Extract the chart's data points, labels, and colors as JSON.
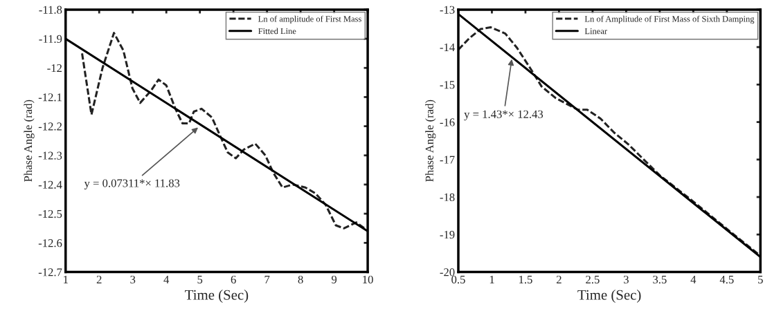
{
  "chart_data": [
    {
      "type": "line",
      "xlabel": "Time (Sec)",
      "ylabel": "Phase Angle (rad)",
      "xlim": [
        1,
        10
      ],
      "ylim": [
        -12.7,
        -11.8
      ],
      "xticks": [
        1,
        2,
        3,
        4,
        5,
        6,
        7,
        8,
        9,
        10
      ],
      "yticks": [
        -12.7,
        -12.6,
        -12.5,
        -12.4,
        -12.3,
        -12.2,
        -12.1,
        -12,
        -11.9,
        -11.8
      ],
      "legend": "top right",
      "grid": false,
      "series": [
        {
          "name": "Ln of amplitude of First Mass",
          "color": "#222222",
          "line_style": "dashed",
          "x": [
            1.49,
            1.77,
            2.1,
            2.44,
            2.72,
            2.99,
            3.22,
            3.53,
            3.77,
            4.0,
            4.27,
            4.48,
            4.68,
            4.82,
            5.05,
            5.36,
            5.63,
            5.83,
            6.07,
            6.31,
            6.65,
            6.95,
            7.19,
            7.46,
            7.77,
            8.14,
            8.44,
            8.75,
            9.05,
            9.29,
            9.66,
            9.9
          ],
          "values": [
            -11.95,
            -12.16,
            -12.0,
            -11.88,
            -11.94,
            -12.07,
            -12.12,
            -12.08,
            -12.04,
            -12.06,
            -12.14,
            -12.19,
            -12.19,
            -12.15,
            -12.14,
            -12.17,
            -12.24,
            -12.29,
            -12.31,
            -12.28,
            -12.26,
            -12.3,
            -12.36,
            -12.41,
            -12.4,
            -12.41,
            -12.43,
            -12.47,
            -12.54,
            -12.55,
            -12.53,
            -12.55
          ]
        },
        {
          "name": "Fitted Line",
          "color": "#000000",
          "line_style": "solid",
          "x": [
            1,
            10
          ],
          "values": [
            -11.9,
            -12.56
          ]
        }
      ],
      "annotations": [
        {
          "text": "y = 0.07311*× 11.83",
          "x": 4.99,
          "y": -12.2
        }
      ]
    },
    {
      "type": "line",
      "xlabel": "Time (Sec)",
      "ylabel": "Phase Angle (rad)",
      "xlim": [
        0.5,
        5
      ],
      "ylim": [
        -20,
        -13
      ],
      "xticks": [
        0.5,
        1,
        1.5,
        2,
        2.5,
        3,
        3.5,
        4,
        4.5,
        5
      ],
      "yticks": [
        -20,
        -19,
        -18,
        -17,
        -16,
        -15,
        -14,
        -13
      ],
      "legend": "top right",
      "grid": false,
      "series": [
        {
          "name": "Ln of Amplitude of First Mass of Sixth Damping",
          "color": "#222222",
          "line_style": "dashed",
          "x": [
            0.5,
            0.66,
            0.83,
            0.98,
            1.2,
            1.37,
            1.57,
            1.74,
            1.95,
            2.11,
            2.28,
            2.42,
            2.62,
            2.82,
            3.03,
            3.5,
            4.0,
            4.5,
            5.0
          ],
          "values": [
            -14.07,
            -13.77,
            -13.52,
            -13.47,
            -13.64,
            -14.01,
            -14.56,
            -15.05,
            -15.36,
            -15.51,
            -15.67,
            -15.67,
            -15.91,
            -16.28,
            -16.59,
            -17.42,
            -18.12,
            -18.85,
            -19.57
          ]
        },
        {
          "name": "Linear",
          "color": "#000000",
          "line_style": "solid",
          "x": [
            0.5,
            5
          ],
          "values": [
            -13.12,
            -19.6
          ]
        }
      ],
      "annotations": [
        {
          "text": "y = 1.43*× 12.43",
          "x": 1.3,
          "y": -14.27
        }
      ]
    }
  ]
}
